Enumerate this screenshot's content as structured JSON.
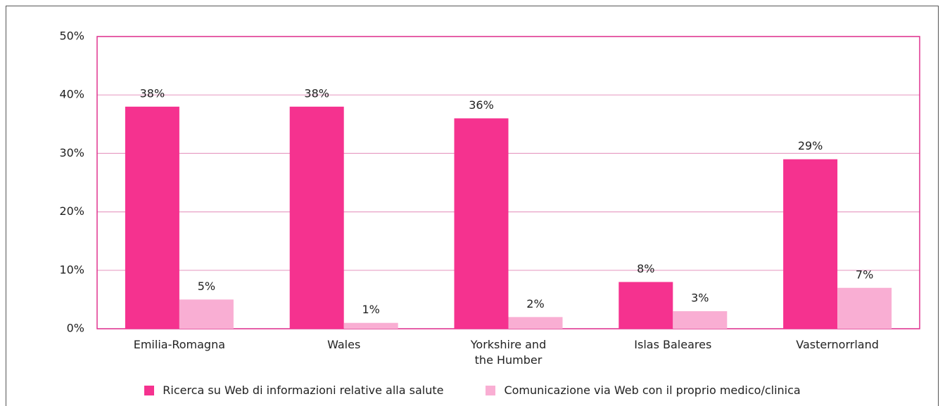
{
  "chart_data": {
    "type": "bar",
    "categories": [
      "Emilia-Romagna",
      "Wales",
      "Yorkshire and the Humber",
      "Islas Baleares",
      "Vasternorrland"
    ],
    "series": [
      {
        "name": "Ricerca su Web di informazioni relative alla salute",
        "color": "#f5328f",
        "values": [
          38,
          38,
          36,
          8,
          29
        ],
        "value_labels": [
          "38%",
          "38%",
          "36%",
          "8%",
          "29%"
        ]
      },
      {
        "name": "Comunicazione via Web con il proprio medico/clinica",
        "color": "#f9aed3",
        "values": [
          5,
          1,
          2,
          3,
          7
        ],
        "value_labels": [
          "5%",
          "1%",
          "2%",
          "3%",
          "7%"
        ]
      }
    ],
    "ylim": [
      0,
      50
    ],
    "yticks": [
      {
        "value": 0,
        "label": "0%"
      },
      {
        "value": 10,
        "label": "10%"
      },
      {
        "value": 20,
        "label": "20%"
      },
      {
        "value": 30,
        "label": "30%"
      },
      {
        "value": 40,
        "label": "40%"
      },
      {
        "value": 50,
        "label": "50%"
      }
    ],
    "grid": true
  }
}
